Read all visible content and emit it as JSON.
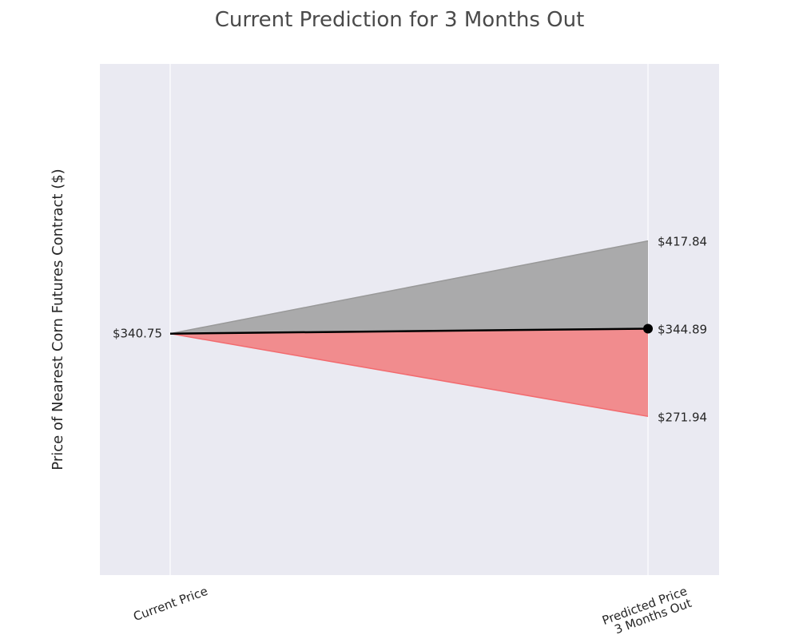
{
  "chart_data": {
    "type": "area",
    "title": "Current Prediction for 3 Months Out",
    "xlabel": "",
    "ylabel": "Price of Nearest Corn Futures Contract ($)",
    "categories": [
      "Current Price",
      "Predicted Price\n3 Months Out"
    ],
    "current_price": 340.75,
    "predicted_price": 344.89,
    "upper_bound": 417.84,
    "lower_bound": 271.94,
    "labels": {
      "current": "$340.75",
      "predicted": "$344.89",
      "upper": "$417.84",
      "lower": "$271.94"
    },
    "ylim": [
      140,
      565
    ],
    "grid": true,
    "colors": {
      "background": "#eaeaf2",
      "grid": "#ffffff",
      "upper_fill": "#aaaaab",
      "upper_edge": "#999999",
      "lower_fill": "#f18c8e",
      "lower_edge": "#f26b6f",
      "prediction_line": "#000000"
    }
  }
}
